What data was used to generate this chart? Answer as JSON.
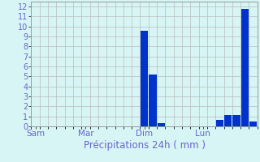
{
  "values": [
    0,
    0,
    0,
    0,
    0,
    0,
    0,
    0,
    0,
    0,
    0,
    0,
    0,
    9.6,
    5.2,
    0.35,
    0,
    0,
    0,
    0,
    0,
    0,
    0.65,
    1.1,
    1.1,
    11.8,
    0.5
  ],
  "bar_color": "#0033cc",
  "background_color": "#d8f5f5",
  "grid_color": "#bbbbbb",
  "xlabel": "Précipitations 24h ( mm )",
  "ylabel_ticks": [
    0,
    1,
    2,
    3,
    4,
    5,
    6,
    7,
    8,
    9,
    10,
    11,
    12
  ],
  "ylim": [
    0,
    12.5
  ],
  "day_labels": [
    "Sam",
    "Mar",
    "Dim",
    "Lun"
  ],
  "day_positions": [
    0,
    6,
    13,
    20
  ],
  "tick_color": "#6666cc",
  "xlabel_color": "#6666cc",
  "xlabel_fontsize": 8.5,
  "ytick_fontsize": 7,
  "xtick_fontsize": 7.5
}
